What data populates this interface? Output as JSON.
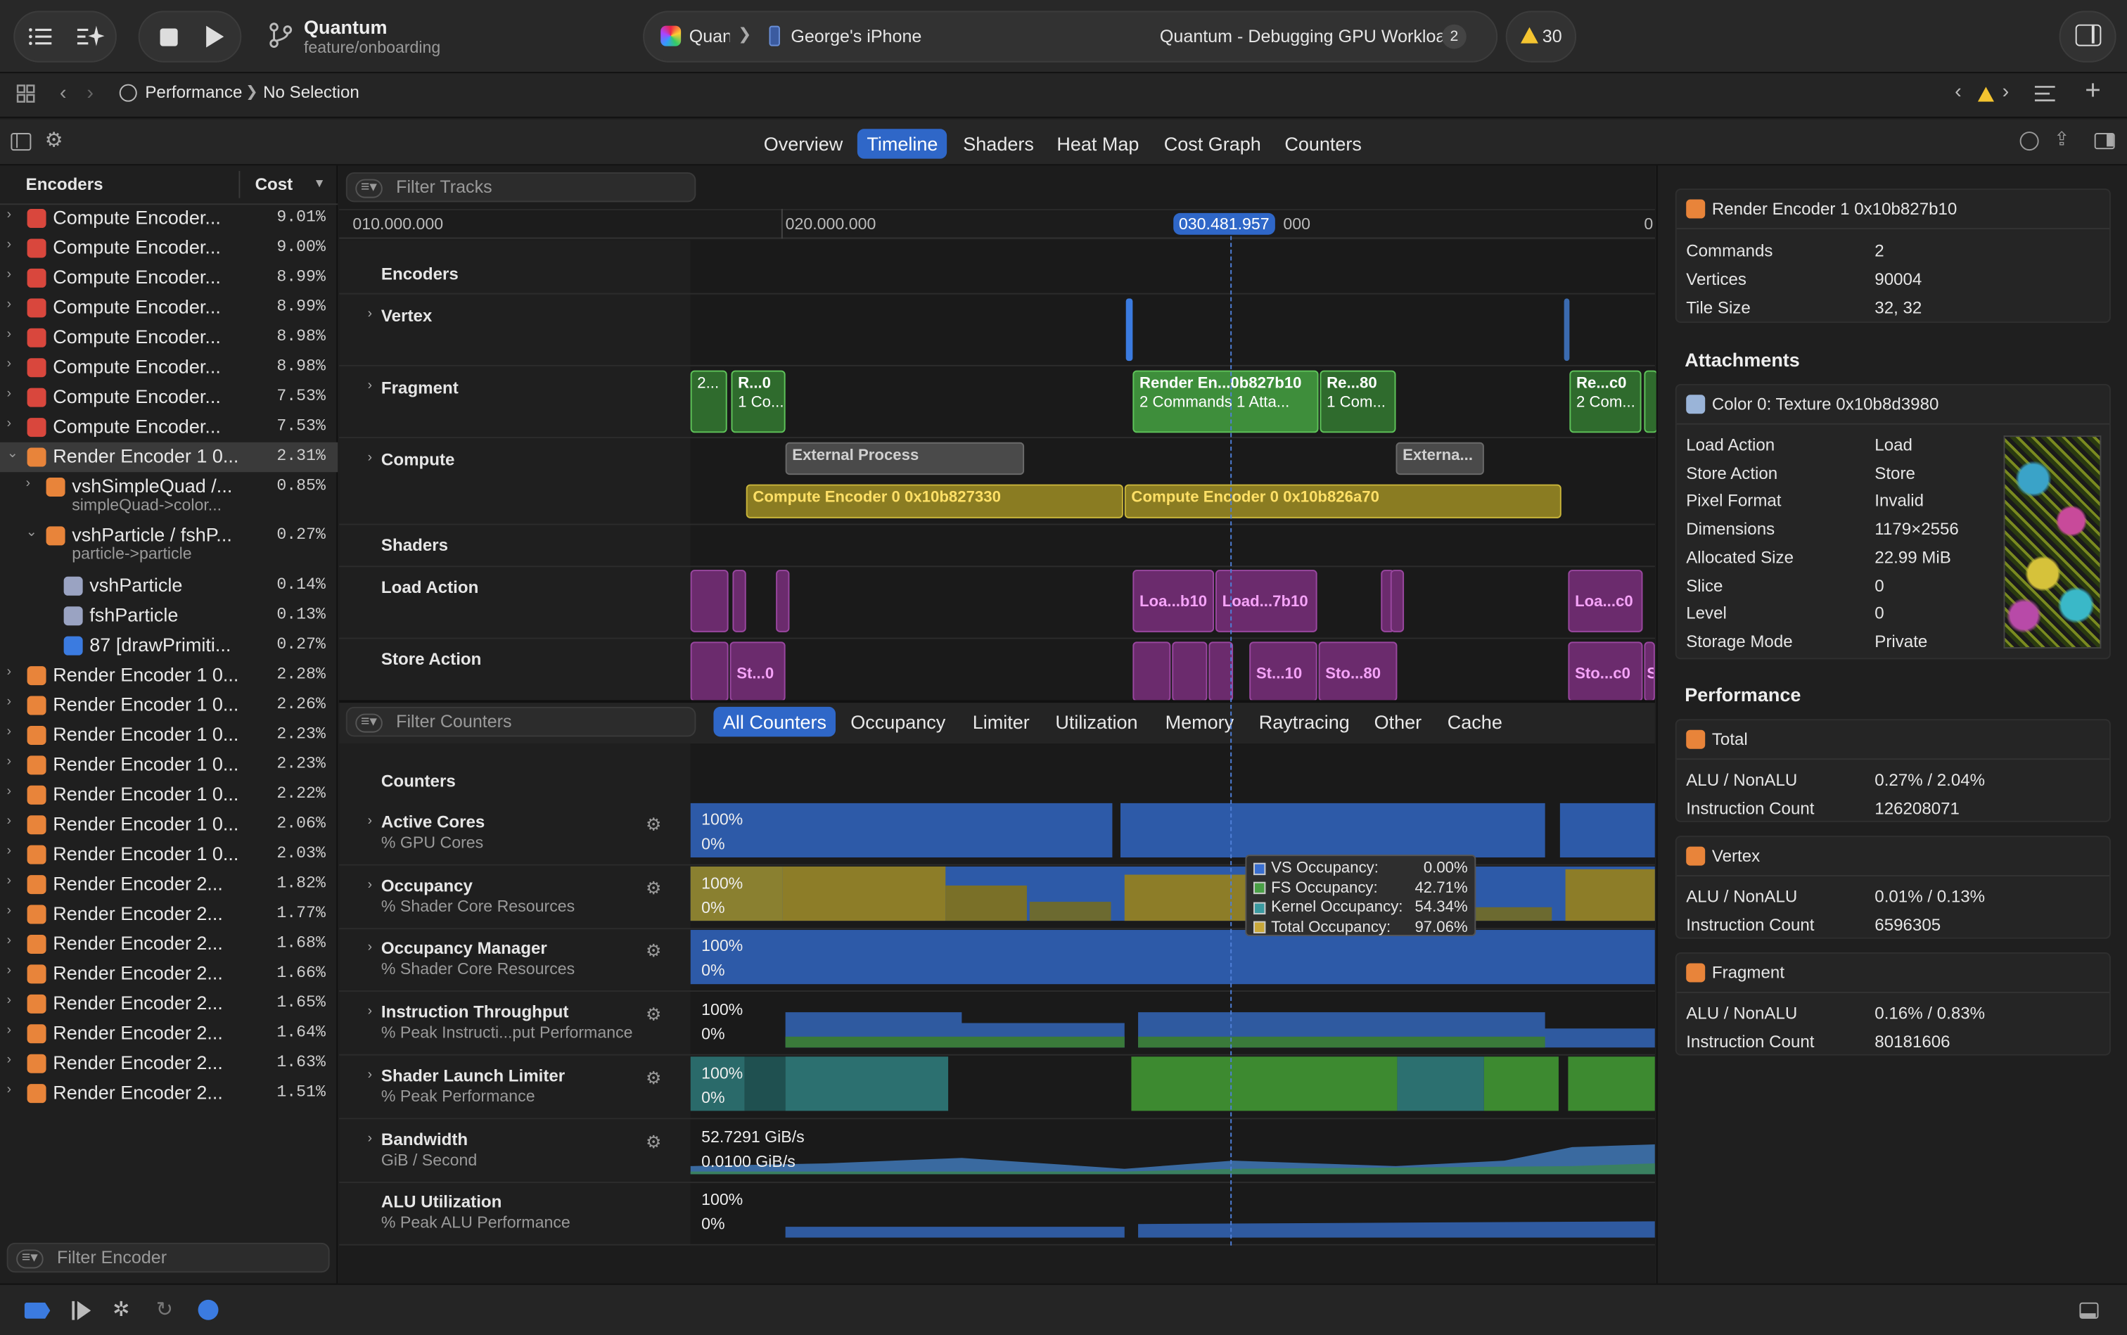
{
  "toolbar": {
    "project": "Quantum",
    "branch": "feature/onboarding",
    "scheme": "Quant",
    "device": "George's iPhone",
    "activity": "Quantum - Debugging GPU Workload",
    "activity_count": "2",
    "warnings": "30"
  },
  "pathbar": {
    "crumb1": "Performance",
    "crumb2": "No Selection"
  },
  "tabs": [
    "Overview",
    "Timeline",
    "Shaders",
    "Heat Map",
    "Cost Graph",
    "Counters"
  ],
  "sidebar": {
    "header_encoders": "Encoders",
    "header_cost": "Cost",
    "filter_placeholder": "Filter Encoder",
    "rows": [
      {
        "label": "Compute Encoder...",
        "cost": "9.01%"
      },
      {
        "label": "Compute Encoder...",
        "cost": "9.00%"
      },
      {
        "label": "Compute Encoder...",
        "cost": "8.99%"
      },
      {
        "label": "Compute Encoder...",
        "cost": "8.99%"
      },
      {
        "label": "Compute Encoder...",
        "cost": "8.98%"
      },
      {
        "label": "Compute Encoder...",
        "cost": "8.98%"
      },
      {
        "label": "Compute Encoder...",
        "cost": "7.53%"
      },
      {
        "label": "Compute Encoder...",
        "cost": "7.53%"
      },
      {
        "label": "Render Encoder 1 0...",
        "cost": "2.31%"
      },
      {
        "label": "vshSimpleQuad /...",
        "sub": "simpleQuad->color...",
        "cost": "0.85%"
      },
      {
        "label": "vshParticle / fshP...",
        "sub": "particle->particle",
        "cost": "0.27%"
      },
      {
        "label": "vshParticle",
        "cost": "0.14%"
      },
      {
        "label": "fshParticle",
        "cost": "0.13%"
      },
      {
        "label": "87 [drawPrimiti...",
        "cost": "0.27%"
      },
      {
        "label": "Render Encoder 1 0...",
        "cost": "2.28%"
      },
      {
        "label": "Render Encoder 1 0...",
        "cost": "2.26%"
      },
      {
        "label": "Render Encoder 1 0...",
        "cost": "2.23%"
      },
      {
        "label": "Render Encoder 1 0...",
        "cost": "2.23%"
      },
      {
        "label": "Render Encoder 1 0...",
        "cost": "2.22%"
      },
      {
        "label": "Render Encoder 1 0...",
        "cost": "2.06%"
      },
      {
        "label": "Render Encoder 1 0...",
        "cost": "2.03%"
      },
      {
        "label": "Render Encoder 2...",
        "cost": "1.82%"
      },
      {
        "label": "Render Encoder 2...",
        "cost": "1.77%"
      },
      {
        "label": "Render Encoder 2...",
        "cost": "1.68%"
      },
      {
        "label": "Render Encoder 2...",
        "cost": "1.66%"
      },
      {
        "label": "Render Encoder 2...",
        "cost": "1.65%"
      },
      {
        "label": "Render Encoder 2...",
        "cost": "1.64%"
      },
      {
        "label": "Render Encoder 2...",
        "cost": "1.63%"
      },
      {
        "label": "Render Encoder 2...",
        "cost": "1.51%"
      }
    ]
  },
  "timeline": {
    "filter_tracks": "Filter Tracks",
    "ruler": [
      "010.000.000",
      "020.000.000",
      "000",
      "0"
    ],
    "playhead": "030.481.957",
    "sections": {
      "encoders": "Encoders",
      "shaders": "Shaders"
    },
    "tracks": {
      "vertex": "Vertex",
      "fragment": "Fragment",
      "compute": "Compute",
      "load": "Load Action",
      "store": "Store Action"
    },
    "frag_blocks": [
      {
        "l1": "",
        "l2": "2..."
      },
      {
        "l1": "R...0",
        "l2": "1 Co..."
      },
      {
        "l1": "Render En...0b827b10",
        "l2": "2 Commands    1 Atta..."
      },
      {
        "l1": "Re...80",
        "l2": "1 Com..."
      },
      {
        "l1": "Re...c0",
        "l2": "2 Com..."
      }
    ],
    "compute_blocks": [
      "External Process",
      "Externa...",
      "Compute Encoder 0 0x10b827330",
      "Compute Encoder 0 0x10b826a70"
    ],
    "load_blocks": [
      "Loa...b10",
      "Load...7b10",
      "Loa...c0"
    ],
    "store_blocks": [
      "St...0",
      "St...10",
      "Sto...80",
      "Sto...c0",
      "S"
    ]
  },
  "counters": {
    "filter_placeholder": "Filter Counters",
    "tabs": [
      "All Counters",
      "Occupancy",
      "Limiter",
      "Utilization",
      "Memory",
      "Raytracing",
      "Other",
      "Cache"
    ],
    "section": "Counters",
    "rows": [
      {
        "name": "Active Cores",
        "sub": "% GPU Cores",
        "top": "100%",
        "bot": "0%"
      },
      {
        "name": "Occupancy",
        "sub": "% Shader Core Resources",
        "top": "100%",
        "bot": "0%"
      },
      {
        "name": "Occupancy Manager",
        "sub": "% Shader Core Resources",
        "top": "100%",
        "bot": "0%"
      },
      {
        "name": "Instruction Throughput",
        "sub": "% Peak Instructi...put Performance",
        "top": "100%",
        "bot": "0%"
      },
      {
        "name": "Shader Launch Limiter",
        "sub": "% Peak Performance",
        "top": "100%",
        "bot": "0%"
      },
      {
        "name": "Bandwidth",
        "sub": "GiB / Second",
        "top": "52.7291 GiB/s",
        "bot": "0.0100 GiB/s"
      },
      {
        "name": "ALU Utilization",
        "sub": "% Peak ALU Performance",
        "top": "100%",
        "bot": "0%"
      }
    ],
    "tooltip": [
      {
        "label": "VS Occupancy:",
        "value": "0.00%",
        "color": "#3a6fd0"
      },
      {
        "label": "FS Occupancy:",
        "value": "42.71%",
        "color": "#4aa047"
      },
      {
        "label": "Kernel Occupancy:",
        "value": "54.34%",
        "color": "#3b9aa0"
      },
      {
        "label": "Total Occupancy:",
        "value": "97.06%",
        "color": "#c9a83a"
      }
    ]
  },
  "inspector": {
    "encoder_title": "Render Encoder 1 0x10b827b10",
    "encoder_kv": [
      {
        "k": "Commands",
        "v": "2"
      },
      {
        "k": "Vertices",
        "v": "90004"
      },
      {
        "k": "Tile Size",
        "v": "32, 32"
      }
    ],
    "attachments_title": "Attachments",
    "attachment_name": "Color 0: Texture 0x10b8d3980",
    "attachment_kv": [
      {
        "k": "Load Action",
        "v": "Load"
      },
      {
        "k": "Store Action",
        "v": "Store"
      },
      {
        "k": "Pixel Format",
        "v": "Invalid"
      },
      {
        "k": "Dimensions",
        "v": "1179×2556"
      },
      {
        "k": "Allocated Size",
        "v": "22.99 MiB"
      },
      {
        "k": "Slice",
        "v": "0"
      },
      {
        "k": "Level",
        "v": "0"
      },
      {
        "k": "Storage Mode",
        "v": "Private"
      }
    ],
    "performance_title": "Performance",
    "perf_cards": [
      {
        "title": "Total",
        "alu_label": "ALU / NonALU",
        "alu": "0.27% / 2.04%",
        "ic_label": "Instruction Count",
        "ic": "126208071"
      },
      {
        "title": "Vertex",
        "alu_label": "ALU / NonALU",
        "alu": "0.01% / 0.13%",
        "ic_label": "Instruction Count",
        "ic": "6596305"
      },
      {
        "title": "Fragment",
        "alu_label": "ALU / NonALU",
        "alu": "0.16% / 0.83%",
        "ic_label": "Instruction Count",
        "ic": "80181606"
      }
    ]
  },
  "colors": {
    "accent": "#2f67c8",
    "compute": "#d9473d",
    "render": "#e8843a",
    "fragment": "#3e8e3b",
    "computeTrack": "#8a7c22",
    "shader": "#6b2b6d"
  }
}
